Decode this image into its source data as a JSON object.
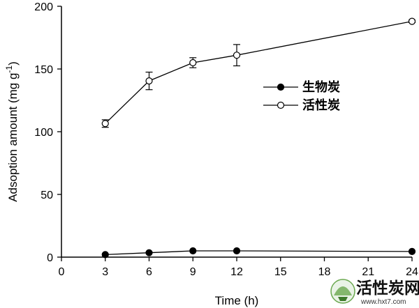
{
  "chart_data": {
    "type": "line",
    "xlabel": "Time (h)",
    "ylabel": "Adsoption amount (mg g",
    "ylabel_sup": "-1",
    "ylabel_close": ")",
    "xlim": [
      0,
      24
    ],
    "ylim": [
      0,
      200
    ],
    "x_ticks": [
      "0",
      "3",
      "6",
      "9",
      "12",
      "15",
      "18",
      "21",
      "24"
    ],
    "y_ticks": [
      "0",
      "50",
      "100",
      "150",
      "200"
    ],
    "grid": false,
    "legend_position": "center-right",
    "series": [
      {
        "name": "生物炭",
        "marker": "filled-circle",
        "x": [
          3,
          6,
          9,
          12,
          24
        ],
        "y": [
          2,
          3.5,
          5,
          5,
          4.5
        ],
        "error": [
          0,
          0,
          0,
          0,
          0
        ]
      },
      {
        "name": "活性炭",
        "marker": "open-circle",
        "x": [
          3,
          6,
          9,
          12,
          24
        ],
        "y": [
          106.5,
          140.5,
          155,
          161,
          188
        ],
        "error": [
          3,
          7,
          4,
          8.5,
          1
        ]
      }
    ]
  },
  "watermark": {
    "text": "活性炭网",
    "url": "www.hxt7.com"
  }
}
